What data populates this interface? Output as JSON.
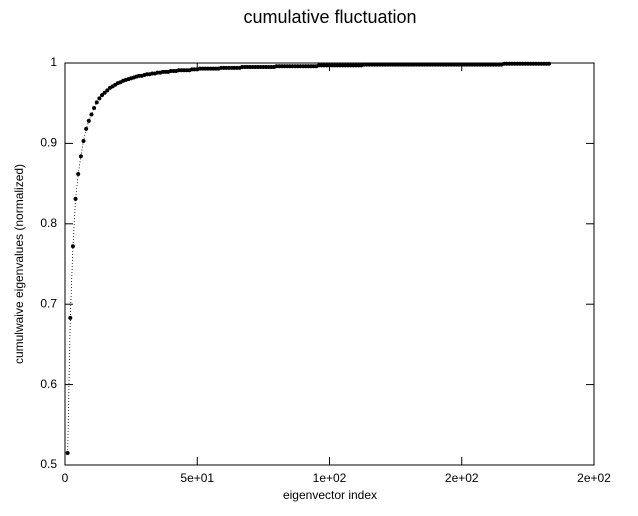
{
  "chart_data": {
    "type": "line",
    "title": "cumulative fluctuation",
    "x_label": "eigenvector index",
    "y_label": "cumulwaive eigenvalues (normalized)",
    "xlim": [
      0,
      200
    ],
    "xticks": [
      0,
      {
        "value": 50,
        "label": "5e+01"
      },
      {
        "value": 100,
        "label": "1e+02"
      },
      {
        "value": 150,
        "label": "2e+02"
      },
      {
        "value": 200,
        "label": "2e+02"
      }
    ],
    "ylim": [
      0.5,
      1
    ],
    "yticks": [
      0.5,
      0.6,
      0.7,
      0.8,
      0.9,
      1
    ],
    "series": [
      {
        "color": "#000000",
        "x": [
          1,
          2,
          3,
          4,
          5,
          6,
          7,
          8,
          9,
          10,
          11,
          12,
          13,
          14,
          15,
          16,
          17,
          18,
          19,
          20,
          21,
          22,
          23,
          24,
          25,
          26,
          27,
          28,
          29,
          30,
          31,
          32,
          33,
          34,
          35,
          36,
          37,
          38,
          39,
          40,
          41,
          42,
          43,
          44,
          45,
          46,
          47,
          48,
          49,
          50,
          51,
          52,
          53,
          54,
          55,
          56,
          57,
          58,
          59,
          60,
          61,
          62,
          63,
          64,
          65,
          66,
          67,
          68,
          69,
          70,
          71,
          72,
          73,
          74,
          75,
          76,
          77,
          78,
          79,
          80,
          81,
          82,
          83,
          84,
          85,
          86,
          87,
          88,
          89,
          90,
          91,
          92,
          93,
          94,
          95,
          96,
          97,
          98,
          99,
          100,
          101,
          102,
          103,
          104,
          105,
          106,
          107,
          108,
          109,
          110,
          111,
          112,
          113,
          114,
          115,
          116,
          117,
          118,
          119,
          120,
          121,
          122,
          123,
          124,
          125,
          126,
          127,
          128,
          129,
          130,
          131,
          132,
          133,
          134,
          135,
          136,
          137,
          138,
          139,
          140,
          141,
          142,
          143,
          144,
          145,
          146,
          147,
          148,
          149,
          150,
          151,
          152,
          153,
          154,
          155,
          156,
          157,
          158,
          159,
          160,
          161,
          162,
          163,
          164,
          165,
          166,
          167,
          168,
          169,
          170,
          171,
          172,
          173,
          174,
          175,
          176,
          177,
          178,
          179,
          180,
          181,
          182,
          183
        ],
        "values": [
          0.515,
          0.683,
          0.772,
          0.831,
          0.862,
          0.884,
          0.903,
          0.918,
          0.928,
          0.936,
          0.944,
          0.951,
          0.956,
          0.96,
          0.963,
          0.966,
          0.969,
          0.971,
          0.973,
          0.975,
          0.976,
          0.978,
          0.979,
          0.98,
          0.981,
          0.982,
          0.983,
          0.984,
          0.984,
          0.985,
          0.986,
          0.986,
          0.987,
          0.987,
          0.988,
          0.988,
          0.989,
          0.989,
          0.989,
          0.99,
          0.99,
          0.99,
          0.991,
          0.991,
          0.991,
          0.991,
          0.991,
          0.992,
          0.992,
          0.992,
          0.993,
          0.993,
          0.993,
          0.993,
          0.993,
          0.993,
          0.993,
          0.993,
          0.994,
          0.994,
          0.994,
          0.994,
          0.994,
          0.994,
          0.994,
          0.994,
          0.995,
          0.995,
          0.995,
          0.995,
          0.995,
          0.995,
          0.995,
          0.995,
          0.995,
          0.995,
          0.995,
          0.995,
          0.995,
          0.996,
          0.996,
          0.996,
          0.996,
          0.996,
          0.996,
          0.996,
          0.996,
          0.996,
          0.996,
          0.996,
          0.996,
          0.996,
          0.996,
          0.996,
          0.996,
          0.997,
          0.997,
          0.997,
          0.997,
          0.997,
          0.997,
          0.997,
          0.997,
          0.997,
          0.997,
          0.997,
          0.997,
          0.997,
          0.997,
          0.997,
          0.997,
          0.997,
          0.998,
          0.998,
          0.998,
          0.998,
          0.998,
          0.998,
          0.998,
          0.998,
          0.998,
          0.998,
          0.998,
          0.998,
          0.998,
          0.998,
          0.998,
          0.998,
          0.998,
          0.998,
          0.998,
          0.998,
          0.998,
          0.998,
          0.998,
          0.998,
          0.998,
          0.998,
          0.998,
          0.998,
          0.998,
          0.998,
          0.998,
          0.998,
          0.998,
          0.998,
          0.998,
          0.998,
          0.998,
          0.998,
          0.998,
          0.998,
          0.998,
          0.998,
          0.998,
          0.998,
          0.998,
          0.998,
          0.998,
          0.998,
          0.998,
          0.998,
          0.998,
          0.998,
          0.998,
          0.999,
          0.999,
          0.999,
          0.999,
          0.999,
          0.999,
          0.999,
          0.999,
          0.999,
          0.999,
          0.999,
          0.999,
          0.999,
          0.999,
          0.999,
          0.999,
          0.999,
          0.999
        ]
      }
    ]
  }
}
